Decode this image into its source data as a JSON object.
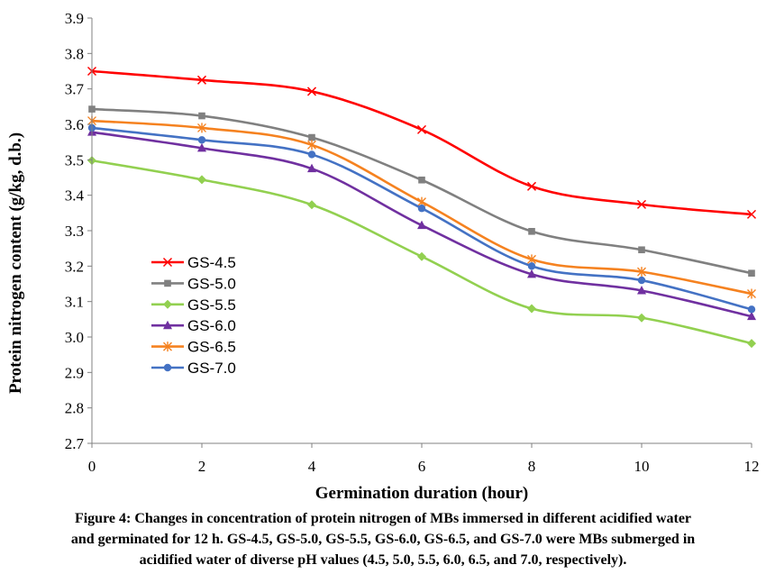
{
  "chart_data": {
    "type": "line",
    "title": "",
    "xlabel": "Germination duration (hour)",
    "ylabel": "Protein nitrogen content (g/kg, d.b.)",
    "x": [
      0,
      2,
      4,
      6,
      8,
      10,
      12
    ],
    "xlim": [
      0,
      12
    ],
    "ylim": [
      2.7,
      3.9
    ],
    "x_ticks": [
      "0",
      "2",
      "4",
      "6",
      "8",
      "10",
      "12"
    ],
    "y_ticks": [
      "2.7",
      "2.8",
      "2.9",
      "3.0",
      "3.1",
      "3.2",
      "3.3",
      "3.4",
      "3.5",
      "3.6",
      "3.7",
      "3.8",
      "3.9"
    ],
    "grid": false,
    "legend_position": "left",
    "series": [
      {
        "name": "GS-4.5",
        "color": "#ff0000",
        "marker": "x",
        "values": [
          3.75,
          3.725,
          3.693,
          3.585,
          3.425,
          3.374,
          3.346
        ]
      },
      {
        "name": "GS-5.0",
        "color": "#808080",
        "marker": "square",
        "values": [
          3.643,
          3.624,
          3.563,
          3.443,
          3.298,
          3.246,
          3.18
        ]
      },
      {
        "name": "GS-5.5",
        "color": "#92d050",
        "marker": "diamond",
        "values": [
          3.498,
          3.444,
          3.373,
          3.227,
          3.08,
          3.054,
          2.982
        ]
      },
      {
        "name": "GS-6.0",
        "color": "#7030a0",
        "marker": "triangle",
        "values": [
          3.578,
          3.533,
          3.475,
          3.315,
          3.177,
          3.131,
          3.058
        ]
      },
      {
        "name": "GS-6.5",
        "color": "#f58220",
        "marker": "star",
        "values": [
          3.61,
          3.59,
          3.542,
          3.381,
          3.219,
          3.184,
          3.122
        ]
      },
      {
        "name": "GS-7.0",
        "color": "#4472c4",
        "marker": "circle",
        "values": [
          3.59,
          3.556,
          3.515,
          3.363,
          3.2,
          3.16,
          3.078
        ]
      }
    ]
  },
  "caption": {
    "line1": "Figure 4: Changes in concentration of protein nitrogen of MBs immersed in different acidified water",
    "line2": "and germinated for 12 h. GS-4.5, GS-5.0, GS-5.5, GS-6.0, GS-6.5, and GS-7.0 were MBs submerged in",
    "line3": "acidified water of diverse pH values (4.5, 5.0, 5.5, 6.0, 6.5, and 7.0, respectively)."
  }
}
